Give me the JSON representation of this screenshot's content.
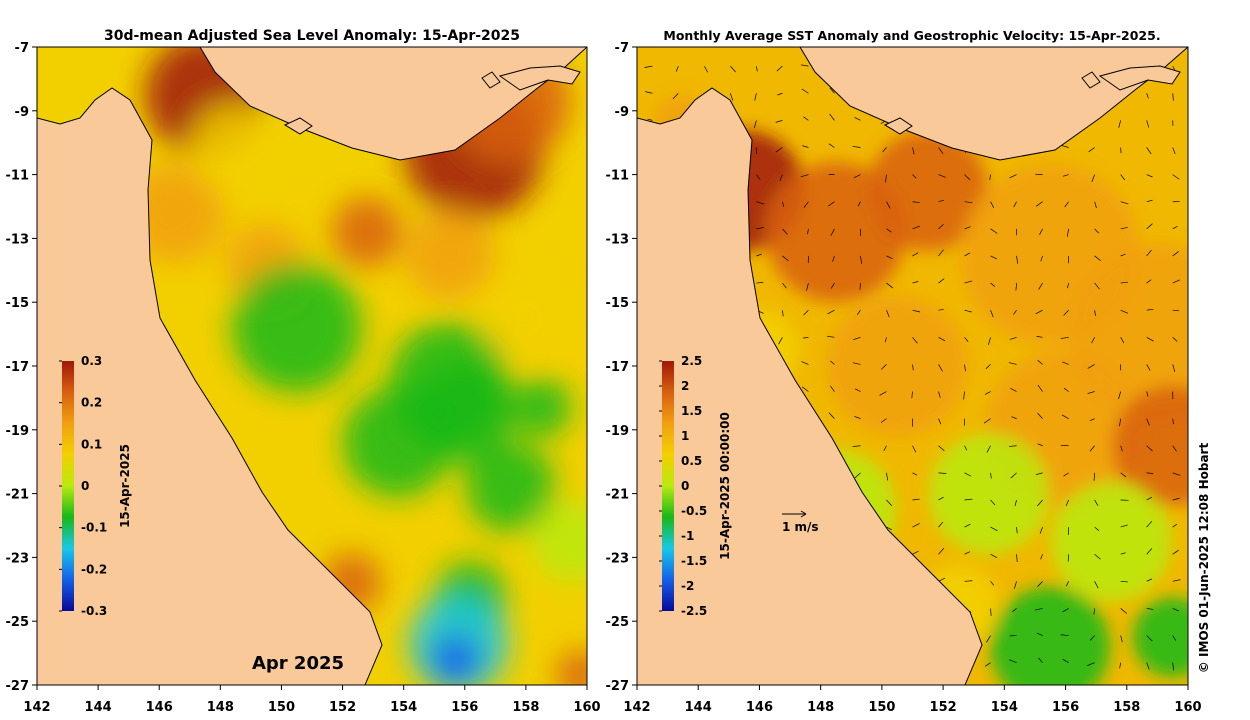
{
  "colors": {
    "land": "#f9c99a",
    "coast": "#000000",
    "frame": "#000000"
  },
  "left_map": {
    "title": "30d-mean Adjusted Sea Level Anomaly: 15-Apr-2025",
    "colorbar_label": "15-Apr-2025",
    "stamp": "Apr 2025",
    "colorbar_ticks": [
      "0.3",
      "0.2",
      "0.1",
      "0",
      "-0.1",
      "-0.2",
      "-0.3"
    ],
    "colormap": [
      "#08089a",
      "#1460e8",
      "#18c8e8",
      "#18b818",
      "#b8ea10",
      "#f2d000",
      "#f0a010",
      "#d86010",
      "#a01808"
    ],
    "value_range": [
      -0.3,
      0.3
    ]
  },
  "right_map": {
    "title": "Monthly Average SST Anomaly  and Geostrophic Velocity: 15-Apr-2025.",
    "colorbar_label": "15-Apr-2025 00:00:00",
    "velocity_scale_label": "1 m/s",
    "colorbar_ticks": [
      "2.5",
      "2",
      "1.5",
      "1",
      "0.5",
      "0",
      "-0.5",
      "-1",
      "-1.5",
      "-2",
      "-2.5"
    ],
    "colormap": [
      "#08089a",
      "#1460e8",
      "#18c8e8",
      "#18b818",
      "#b8ea10",
      "#f2d000",
      "#f0a010",
      "#d86010",
      "#a01808"
    ],
    "value_range": [
      -2.5,
      2.5
    ]
  },
  "axes": {
    "lon_ticks": [
      "142",
      "144",
      "146",
      "148",
      "150",
      "152",
      "154",
      "156",
      "158",
      "160"
    ],
    "lat_ticks": [
      "-7",
      "-9",
      "-11",
      "-13",
      "-15",
      "-17",
      "-19",
      "-21",
      "-23",
      "-25",
      "-27"
    ]
  },
  "credit": "© IMOS 01-Jun-2025 12:08 Hobart"
}
